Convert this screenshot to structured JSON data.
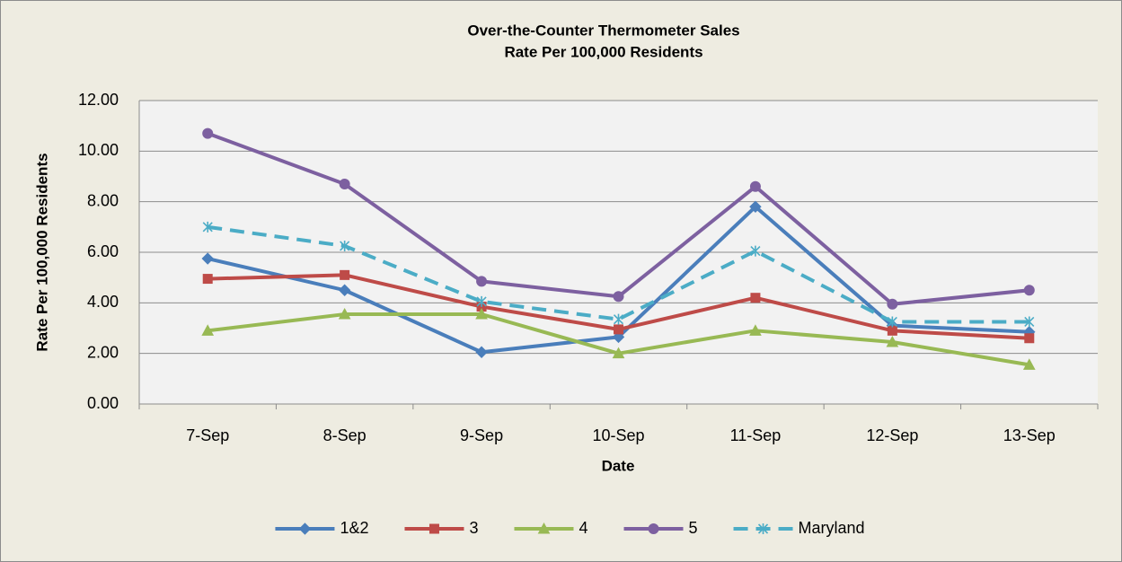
{
  "chart_data": {
    "type": "line",
    "title": "Over-the-Counter Thermometer Sales",
    "subtitle": "Rate Per 100,000 Residents",
    "x_label": "Date",
    "y_label": "Rate Per 100,000 Residents",
    "categories": [
      "7-Sep",
      "8-Sep",
      "9-Sep",
      "10-Sep",
      "11-Sep",
      "12-Sep",
      "13-Sep"
    ],
    "series": [
      {
        "name": "1&2",
        "color": "#4a7ebb",
        "marker": "diamond",
        "dashed": false,
        "values": [
          5.75,
          4.5,
          2.05,
          2.65,
          7.8,
          3.1,
          2.85
        ]
      },
      {
        "name": "3",
        "color": "#be4b48",
        "marker": "square",
        "dashed": false,
        "values": [
          4.95,
          5.1,
          3.85,
          2.95,
          4.2,
          2.9,
          2.6
        ]
      },
      {
        "name": "4",
        "color": "#98b954",
        "marker": "triangle",
        "dashed": false,
        "values": [
          2.9,
          3.55,
          3.55,
          2.0,
          2.9,
          2.45,
          1.55
        ]
      },
      {
        "name": "5",
        "color": "#7d60a0",
        "marker": "circle",
        "dashed": false,
        "values": [
          10.7,
          8.7,
          4.85,
          4.25,
          8.6,
          3.95,
          4.5
        ]
      },
      {
        "name": "Maryland",
        "color": "#4bacc6",
        "marker": "star",
        "dashed": true,
        "values": [
          7.0,
          6.25,
          4.05,
          3.35,
          6.05,
          3.25,
          3.25
        ]
      }
    ],
    "ylim": [
      0,
      12
    ],
    "yticks": [
      {
        "value": 0,
        "label": "0.00"
      },
      {
        "value": 2,
        "label": "2.00"
      },
      {
        "value": 4,
        "label": "4.00"
      },
      {
        "value": 6,
        "label": "6.00"
      },
      {
        "value": 8,
        "label": "8.00"
      },
      {
        "value": 10,
        "label": "10.00"
      },
      {
        "value": 12,
        "label": "12.00"
      }
    ],
    "grid": true,
    "legend": "bottom"
  }
}
